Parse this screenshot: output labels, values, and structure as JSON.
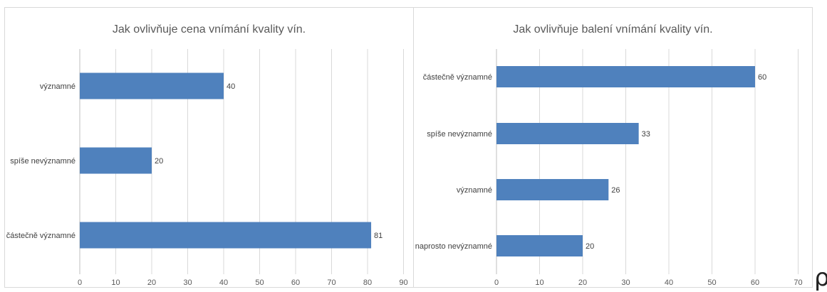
{
  "chart_data": [
    {
      "type": "bar",
      "orientation": "horizontal",
      "title": "Jak ovlivňuje cena vnímání kvality vín.",
      "categories": [
        "významné",
        "spíše nevýznamné",
        "částečně významné"
      ],
      "values": [
        40,
        20,
        81
      ],
      "data_labels": [
        "40",
        "20",
        "81"
      ],
      "xlim": [
        0,
        90
      ],
      "xticks": [
        0,
        10,
        20,
        30,
        40,
        50,
        60,
        70,
        80,
        90
      ],
      "grid": "vertical",
      "legend": "none",
      "bar_color": "#4f81bd"
    },
    {
      "type": "bar",
      "orientation": "horizontal",
      "title": "Jak ovlivňuje balení vnímání kvality vín.",
      "categories": [
        "částečně významné",
        "spíše nevýznamné",
        "významné",
        "naprosto nevýznamné"
      ],
      "values": [
        60,
        33,
        26,
        20
      ],
      "data_labels": [
        "60",
        "33",
        "26",
        "20"
      ],
      "xlim": [
        0,
        70
      ],
      "xticks": [
        0,
        10,
        20,
        30,
        40,
        50,
        60,
        70
      ],
      "grid": "vertical",
      "legend": "none",
      "bar_color": "#4f81bd"
    }
  ],
  "colors": {
    "bar": "#4f81bd",
    "grid": "#d9d9d9",
    "axis": "#bfbfbf",
    "text": "#595959",
    "label": "#404040"
  },
  "corner_glyph": "ρ"
}
